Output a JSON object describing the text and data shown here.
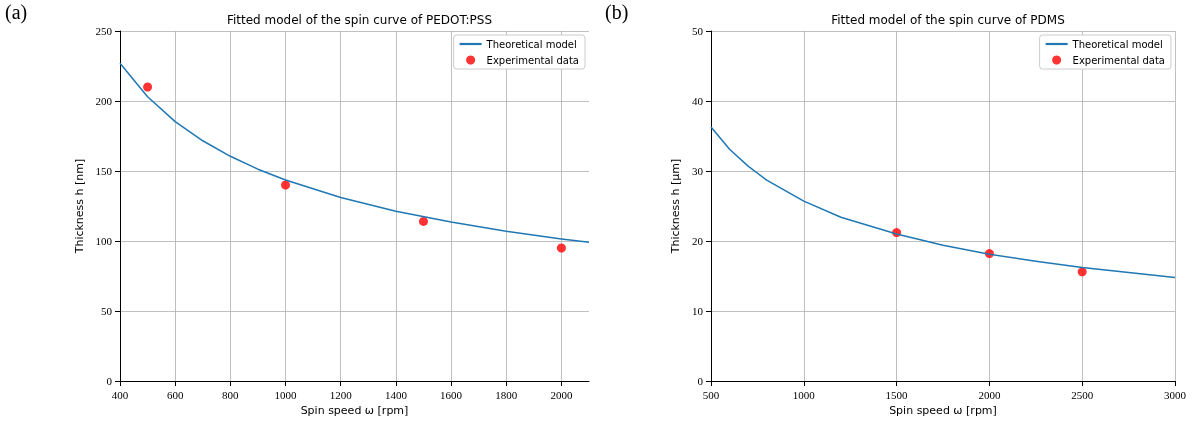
{
  "chart_data": [
    {
      "type": "line",
      "title": "Fitted model of the spin curve of PEDOT:PSS",
      "xlabel": "Spin speed ω [rpm]",
      "ylabel": "Thickness h [nm]",
      "annotations": [
        "(a)"
      ],
      "series": [
        {
          "name": "Theoretical model",
          "color": "#1f77b4",
          "marker": "none",
          "x": [
            400,
            500,
            600,
            700,
            800,
            900,
            1000,
            1200,
            1400,
            1600,
            1800,
            2000,
            2100
          ],
          "values": [
            227,
            203,
            185.3,
            171.6,
            160.5,
            151.3,
            143.6,
            131.1,
            121.3,
            113.5,
            107,
            101.5,
            99.1
          ]
        },
        {
          "name": "Experimental data",
          "type": "scatter",
          "color": "#ff0000",
          "marker": "circle",
          "x": [
            500,
            1000,
            1500,
            2000
          ],
          "values": [
            210,
            140,
            114,
            95
          ]
        }
      ],
      "xlim": [
        400,
        2100
      ],
      "xticks": [
        400,
        600,
        800,
        1000,
        1200,
        1400,
        1600,
        1800,
        2000
      ],
      "ylim": [
        0,
        250
      ],
      "yticks": [
        0,
        50,
        100,
        150,
        200,
        250
      ],
      "grid": true,
      "legend": "top right"
    },
    {
      "type": "line",
      "title": "Fitted model of the spin curve of PDMS",
      "xlabel": "Spin speed ω [rpm]",
      "ylabel": "Thickness h [μm]",
      "annotations": [
        "(b)"
      ],
      "series": [
        {
          "name": "Theoretical model",
          "color": "#1f77b4",
          "marker": "none",
          "x": [
            500,
            600,
            700,
            800,
            1000,
            1200,
            1500,
            1750,
            2000,
            2250,
            2500,
            2750,
            3000
          ],
          "values": [
            36.3,
            33.1,
            30.7,
            28.7,
            25.7,
            23.4,
            21,
            19.4,
            18.1,
            17.1,
            16.2,
            15.5,
            14.8
          ]
        },
        {
          "name": "Experimental data",
          "type": "scatter",
          "color": "#ff0000",
          "marker": "circle",
          "x": [
            1500,
            2000,
            2500
          ],
          "values": [
            21.2,
            18.2,
            15.6
          ]
        }
      ],
      "xlim": [
        500,
        3000
      ],
      "xticks": [
        500,
        1000,
        1500,
        2000,
        2500,
        3000
      ],
      "ylim": [
        0,
        50
      ],
      "yticks": [
        0,
        10,
        20,
        30,
        40,
        50
      ],
      "grid": true,
      "legend": "top right"
    }
  ]
}
